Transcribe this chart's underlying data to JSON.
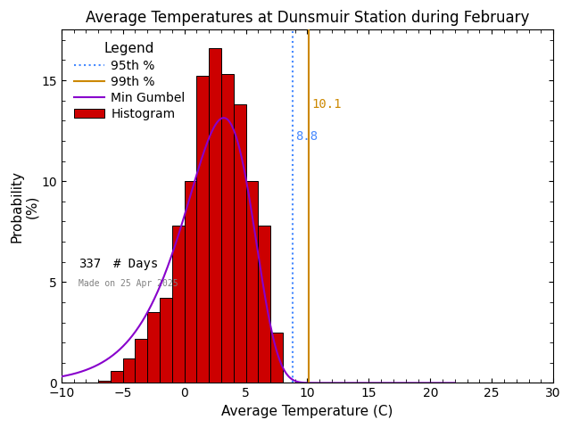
{
  "title": "Average Temperatures at Dunsmuir Station during February",
  "xlabel": "Average Temperature (C)",
  "ylabel": "Probability\n(%)",
  "xlim": [
    -10,
    30
  ],
  "ylim": [
    0,
    17.5
  ],
  "xticks": [
    -10,
    -5,
    0,
    5,
    10,
    15,
    20,
    25,
    30
  ],
  "yticks": [
    0,
    5,
    10,
    15
  ],
  "bar_color": "#cc0000",
  "bar_edge_color": "#000000",
  "gumbel_color": "#8800cc",
  "pct95_color": "#4488ff",
  "pct99_color": "#cc8800",
  "pct95_value": 8.8,
  "pct99_value": 10.1,
  "n_days": 337,
  "made_on": "Made on 25 Apr 2025",
  "legend_title": "Legend",
  "bin_left_edges": [
    -7,
    -6,
    -5,
    -4,
    -3,
    -2,
    -1,
    0,
    1,
    2,
    3,
    4,
    5,
    6,
    7,
    8,
    9,
    10
  ],
  "bin_heights": [
    0.1,
    0.6,
    1.2,
    2.2,
    3.5,
    4.2,
    7.8,
    10.0,
    15.2,
    16.6,
    15.3,
    13.8,
    10.0,
    7.8,
    2.5,
    0.0,
    0.0,
    0.0
  ],
  "gumbel_mu": 3.2,
  "gumbel_beta": 2.8,
  "gumbel_scale": 100,
  "background_color": "#ffffff",
  "title_fontsize": 12,
  "axis_fontsize": 11,
  "tick_fontsize": 10,
  "legend_fontsize": 10
}
